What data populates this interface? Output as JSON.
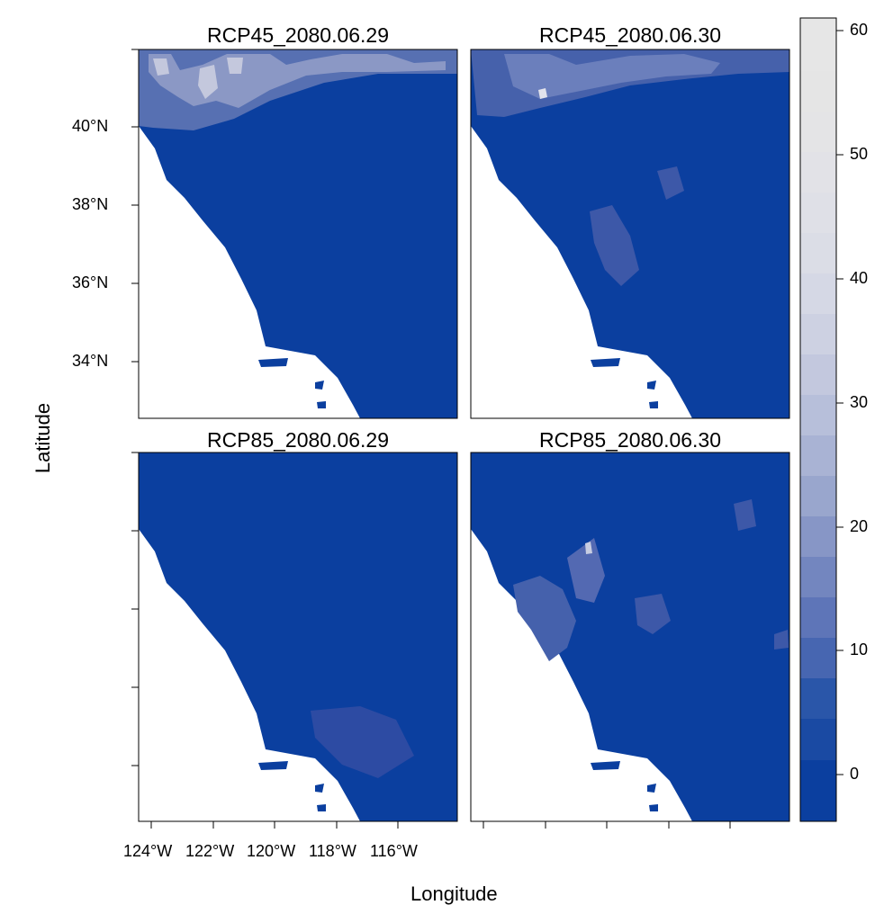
{
  "panels": [
    {
      "title": "RCP45_2080.06.29"
    },
    {
      "title": "RCP45_2080.06.30"
    },
    {
      "title": "RCP85_2080.06.29"
    },
    {
      "title": "RCP85_2080.06.30"
    }
  ],
  "axes": {
    "xlabel": "Longitude",
    "ylabel": "Latitude",
    "x_ticks": [
      "124°W",
      "122°W",
      "120°W",
      "118°W",
      "116°W"
    ],
    "y_ticks": [
      "40°N",
      "38°N",
      "36°N",
      "34°N"
    ]
  },
  "colorbar": {
    "ticks": [
      "0",
      "10",
      "20",
      "30",
      "40",
      "50",
      "60"
    ],
    "range": [
      -4,
      61
    ],
    "low_color": "#0b3f9f",
    "high_color": "#e6e6e6"
  },
  "colors": {
    "ocean": "#ffffff",
    "land_base": "#0b3f9f"
  }
}
